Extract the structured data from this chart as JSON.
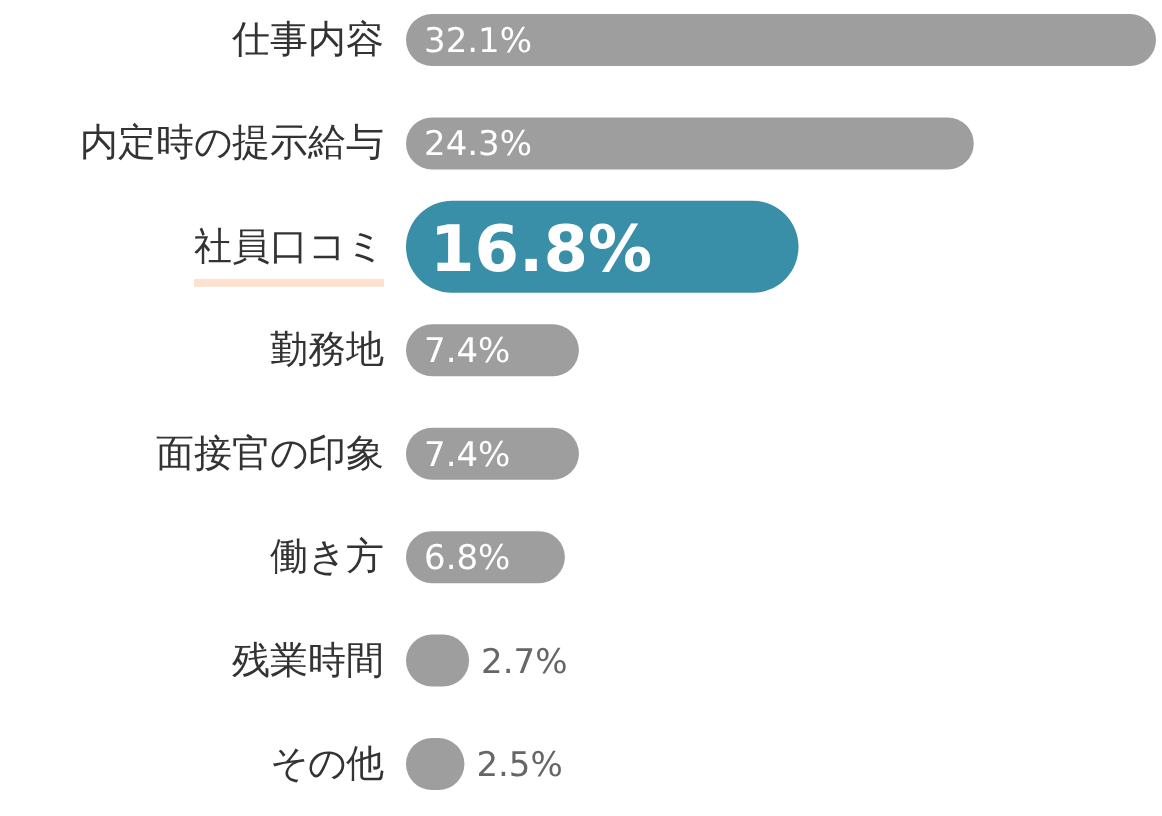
{
  "chart_data": {
    "type": "bar",
    "orientation": "horizontal",
    "categories": [
      "仕事内容",
      "内定時の提示給与",
      "社員口コミ",
      "勤務地",
      "面接官の印象",
      "働き方",
      "残業時間",
      "その他"
    ],
    "values": [
      32.1,
      24.3,
      16.8,
      7.4,
      7.4,
      6.8,
      2.7,
      2.5
    ],
    "value_labels": [
      "32.1%",
      "24.3%",
      "16.8%",
      "7.4%",
      "7.4%",
      "6.8%",
      "2.7%",
      "2.5%"
    ],
    "colors": [
      "#9e9e9e",
      "#9e9e9e",
      "#3a8fa8",
      "#9e9e9e",
      "#9e9e9e",
      "#9e9e9e",
      "#9e9e9e",
      "#9e9e9e"
    ]
  }
}
